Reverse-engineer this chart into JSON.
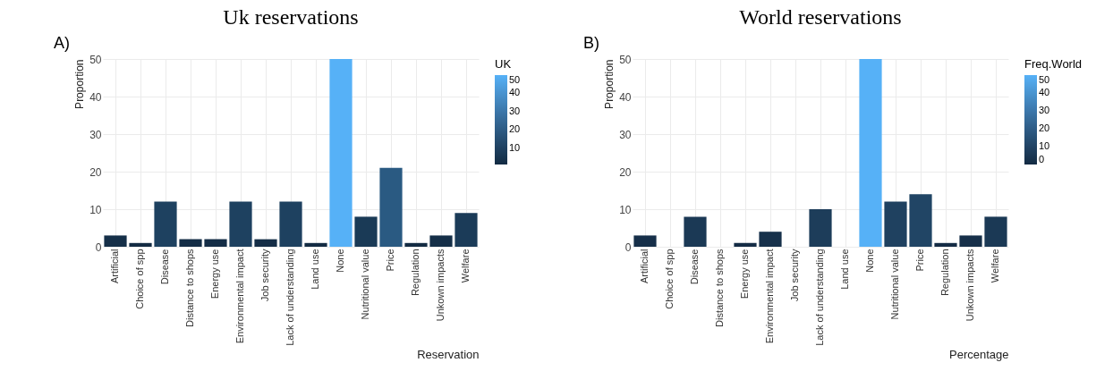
{
  "chart_data": [
    {
      "type": "bar",
      "title": "Uk reservations",
      "xlabel": "Reservation",
      "ylabel": "Proportion",
      "clabel": "UK",
      "annotations": [
        "A)"
      ],
      "categories": [
        "Artificial",
        "Choice of spp",
        "Disease",
        "Distance to shops",
        "Energy use",
        "Environmental impact",
        "Job security",
        "Lack of understanding",
        "Land use",
        "None",
        "Nutritional value",
        "Price",
        "Regulation",
        "Unkown impacts",
        "Welfare"
      ],
      "values": [
        3,
        1,
        12,
        2,
        2,
        12,
        2,
        12,
        1,
        50,
        8,
        21,
        1,
        3,
        9
      ],
      "colors": [
        "#152f48",
        "#132b43",
        "#1e4160",
        "#142d46",
        "#142d46",
        "#1e4160",
        "#142d46",
        "#1e4160",
        "#132b43",
        "#56b1f7",
        "#1a3a56",
        "#2a5a82",
        "#132b43",
        "#152f48",
        "#1b3b58"
      ],
      "ylim": [
        0,
        50
      ],
      "yticks": [
        0,
        10,
        20,
        30,
        40,
        50
      ],
      "clim": [
        1,
        50
      ],
      "cticks": [
        10,
        20,
        30,
        40,
        50
      ],
      "grid": true
    },
    {
      "type": "bar",
      "title": "World reservations",
      "xlabel": "Percentage",
      "ylabel": "Proportion",
      "clabel": "Freq.World",
      "annotations": [
        "B)"
      ],
      "categories": [
        "Artificial",
        "Choice of spp",
        "Disease",
        "Distance to shops",
        "Energy use",
        "Environmental impact",
        "Job security",
        "Lack of understanding",
        "Land use",
        "None",
        "Nutritional value",
        "Price",
        "Regulation",
        "Unkown impacts",
        "Welfare"
      ],
      "values": [
        3,
        0,
        8,
        0,
        1,
        4,
        0,
        10,
        0,
        50,
        12,
        14,
        1,
        3,
        8
      ],
      "colors": [
        "#162f49",
        "#132b43",
        "#1b3955",
        "#132b43",
        "#142c45",
        "#17314b",
        "#132b43",
        "#1d3d5a",
        "#132b43",
        "#56b1f7",
        "#1f4160",
        "#214565",
        "#142c45",
        "#162f49",
        "#1b3955"
      ],
      "ylim": [
        0,
        50
      ],
      "yticks": [
        0,
        10,
        20,
        30,
        40,
        50
      ],
      "clim": [
        0,
        50
      ],
      "cticks": [
        0,
        10,
        20,
        30,
        40,
        50
      ],
      "grid": true
    }
  ]
}
